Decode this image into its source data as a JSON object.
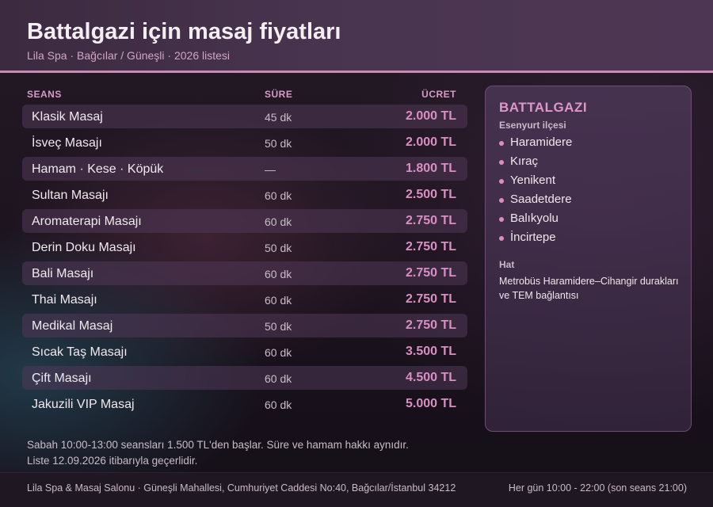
{
  "header": {
    "title": "Battalgazi için masaj fiyatları",
    "subtitle": "Lila Spa · Bağcılar / Güneşli · 2026 listesi"
  },
  "table": {
    "columns": {
      "seans": "SEANS",
      "sure": "SÜRE",
      "ucret": "ÜCRET"
    },
    "rows": [
      {
        "name": "Klasik Masaj",
        "duration": "45 dk",
        "price": "2.000 TL"
      },
      {
        "name": "İsveç Masajı",
        "duration": "50 dk",
        "price": "2.000 TL"
      },
      {
        "name": "Hamam · Kese · Köpük",
        "duration": "—",
        "price": "1.800 TL"
      },
      {
        "name": "Sultan Masajı",
        "duration": "60 dk",
        "price": "2.500 TL"
      },
      {
        "name": "Aromaterapi Masajı",
        "duration": "60 dk",
        "price": "2.750 TL"
      },
      {
        "name": "Derin Doku Masajı",
        "duration": "50 dk",
        "price": "2.750 TL"
      },
      {
        "name": "Bali Masajı",
        "duration": "60 dk",
        "price": "2.750 TL"
      },
      {
        "name": "Thai Masajı",
        "duration": "60 dk",
        "price": "2.750 TL"
      },
      {
        "name": "Medikal Masaj",
        "duration": "50 dk",
        "price": "2.750 TL"
      },
      {
        "name": "Sıcak Taş Masajı",
        "duration": "60 dk",
        "price": "3.500 TL"
      },
      {
        "name": "Çift Masajı",
        "duration": "60 dk",
        "price": "4.500 TL"
      },
      {
        "name": "Jakuzili VIP Masaj",
        "duration": "60 dk",
        "price": "5.000 TL"
      }
    ]
  },
  "panel": {
    "title": "BATTALGAZI",
    "subtitle": "Esenyurt ilçesi",
    "neighborhoods": [
      "Haramidere",
      "Kıraç",
      "Yenikent",
      "Saadetdere",
      "Balıkyolu",
      "İncirtepe"
    ],
    "hat_label": "Hat",
    "hat_text": "Metrobüs Haramidere–Cihangir durakları ve TEM bağlantısı"
  },
  "notes": {
    "line1": "Sabah 10:00-13:00 seansları 1.500 TL'den başlar. Süre ve hamam hakkı aynıdır.",
    "line2": "Liste 12.09.2026 itibarıyla geçerlidir."
  },
  "footer": {
    "address": "Lila Spa & Masaj Salonu · Güneşli Mahallesi, Cumhuriyet Caddesi No:40, Bağcılar/İstanbul 34212",
    "hours": "Her gün 10:00 - 22:00 (son seans 21:00)"
  },
  "colors": {
    "accent": "#d98fc3",
    "header_rule": "#c98bb4",
    "row_alt": "#503858"
  }
}
